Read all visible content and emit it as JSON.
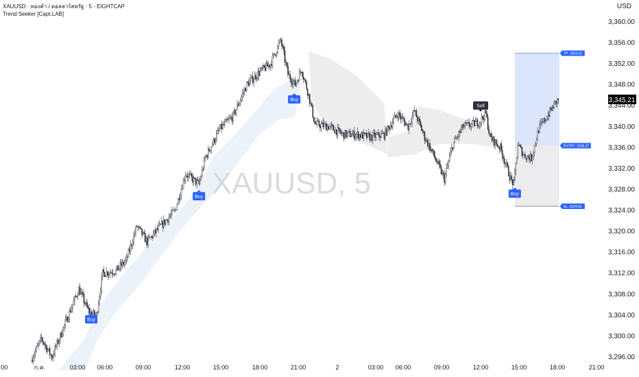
{
  "header": {
    "symbol_line": "XAUUSD · ทองคำ / ดอลลาร์สหรัฐ · 5 · EIGHTCAP",
    "indicator": "Trend Seeker [Capt.LAB]"
  },
  "watermark": "XAUUSD, 5",
  "chart_data": {
    "type": "candlestick",
    "symbol": "XAUUSD",
    "timeframe": "5",
    "currency": "USD",
    "ylim": [
      3294,
      3362
    ],
    "y_ticks": [
      "3,296.00",
      "3,300.00",
      "3,304.00",
      "3,308.00",
      "3,312.00",
      "3,316.00",
      "3,320.00",
      "3,324.00",
      "3,328.00",
      "3,332.00",
      "3,336.00",
      "3,340.00",
      "3,344.00",
      "3,348.00",
      "3,352.00",
      "3,356.00",
      "3,360.00"
    ],
    "x_ticks": [
      ":00",
      "ก.ค.",
      "03:00",
      "06:00",
      "09:00",
      "12:00",
      "15:00",
      "18:00",
      "21:00",
      "2",
      "03:00",
      "06:00",
      "09:00",
      "12:00",
      "15:00",
      "18:00",
      "21:00"
    ],
    "last_price": "3,345.21",
    "price_path": [
      [
        "30 23:50",
        3295.5
      ],
      [
        "1 00:40",
        3299.5
      ],
      [
        "1 01:30",
        3296
      ],
      [
        "1 02:35",
        3302.5
      ],
      [
        "1 03:40",
        3309
      ],
      [
        "1 04:30",
        3304.5
      ],
      [
        "1 05:05",
        3304
      ],
      [
        "1 05:35",
        3312
      ],
      [
        "1 06:40",
        3312.5
      ],
      [
        "1 07:30",
        3314.5
      ],
      [
        "1 08:20",
        3321
      ],
      [
        "1 09:10",
        3318
      ],
      [
        "1 10:15",
        3321
      ],
      [
        "1 11:25",
        3324
      ],
      [
        "1 12:15",
        3331
      ],
      [
        "1 13:20",
        3329
      ],
      [
        "1 13:50",
        3334
      ],
      [
        "1 15:00",
        3339.5
      ],
      [
        "1 16:05",
        3342
      ],
      [
        "1 17:10",
        3348
      ],
      [
        "1 18:15",
        3350.5
      ],
      [
        "1 19:05",
        3352
      ],
      [
        "1 19:55",
        3356.5
      ],
      [
        "1 20:30",
        3350
      ],
      [
        "1 21:05",
        3348
      ],
      [
        "1 21:35",
        3351
      ],
      [
        "1 22:10",
        3346
      ],
      [
        "1 22:40",
        3340.5
      ],
      [
        "1 23:50",
        3340
      ],
      [
        "2 00:55",
        3338.5
      ],
      [
        "2 02:00",
        3338.5
      ],
      [
        "2 03:05",
        3338
      ],
      [
        "2 04:15",
        3338.5
      ],
      [
        "2 05:20",
        3342.5
      ],
      [
        "2 06:10",
        3340
      ],
      [
        "2 06:40",
        3343
      ],
      [
        "2 07:30",
        3338
      ],
      [
        "2 08:20",
        3334
      ],
      [
        "2 09:05",
        3330
      ],
      [
        "2 09:45",
        3336.5
      ],
      [
        "2 10:35",
        3340
      ],
      [
        "2 11:25",
        3340.5
      ],
      [
        "2 11:55",
        3341
      ],
      [
        "2 12:25",
        3342.5
      ],
      [
        "2 12:45",
        3338
      ],
      [
        "2 13:35",
        3336
      ],
      [
        "2 14:25",
        3330
      ],
      [
        "2 14:40",
        3329
      ],
      [
        "2 15:00",
        3336.5
      ],
      [
        "2 15:30",
        3334.5
      ],
      [
        "2 16:05",
        3334
      ],
      [
        "2 16:40",
        3339.5
      ],
      [
        "2 17:30",
        3342.5
      ],
      [
        "2 18:00",
        3344.5
      ],
      [
        "2 18:15",
        3345.2
      ]
    ],
    "signals": [
      {
        "label": "Buy",
        "time": "1 04:40",
        "price": 3304,
        "color": "#2962ff"
      },
      {
        "label": "Buy",
        "time": "1 13:20",
        "price": 3327.5,
        "color": "#2962ff"
      },
      {
        "label": "Buy",
        "time": "1 21:00",
        "price": 3346,
        "color": "#2962ff"
      },
      {
        "label": "Sell",
        "time": "2 12:00",
        "price": 3343,
        "color": "#2a2e39"
      },
      {
        "label": "Buy",
        "time": "2 14:45",
        "price": 3328,
        "color": "#2962ff"
      }
    ],
    "trade": {
      "start": "2 14:45",
      "end": "2 18:20",
      "tp": 3354.02,
      "entry": 3336.37,
      "sl": 3324.81,
      "tp_label": "TP: 3354.02",
      "entry_label": "ENTRY: 3336.37",
      "sl_label": "SL: 3324.81",
      "color": "#2962ff"
    }
  }
}
